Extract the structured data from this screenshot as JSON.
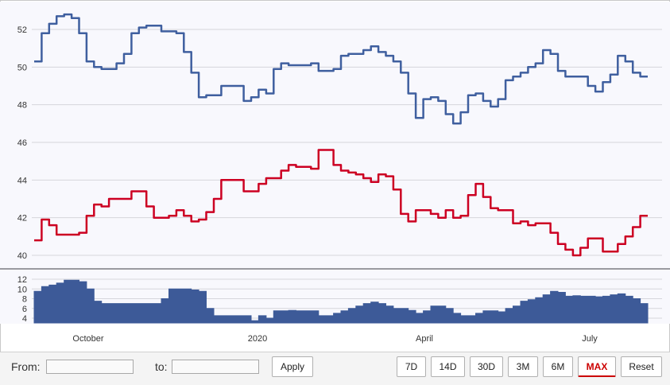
{
  "chart_data": [
    {
      "type": "line",
      "ylim": [
        40,
        53
      ],
      "y_ticks": [
        "40",
        "42",
        "44",
        "46",
        "48",
        "50",
        "52"
      ],
      "grid": true,
      "x_labels": [
        "October",
        "2020",
        "April",
        "July"
      ],
      "series": [
        {
          "color": "#3f5f9f",
          "values": [
            50.3,
            51.8,
            52.3,
            52.7,
            52.8,
            52.6,
            51.8,
            50.3,
            50.0,
            49.9,
            49.9,
            50.2,
            50.7,
            51.8,
            52.1,
            52.2,
            52.2,
            51.9,
            51.9,
            51.8,
            50.8,
            49.7,
            48.4,
            48.5,
            48.5,
            49.0,
            49.0,
            49.0,
            48.2,
            48.4,
            48.8,
            48.6,
            49.9,
            50.2,
            50.1,
            50.1,
            50.1,
            50.2,
            49.8,
            49.8,
            49.9,
            50.6,
            50.7,
            50.7,
            50.9,
            51.1,
            50.8,
            50.6,
            50.3,
            49.7,
            48.6,
            47.3,
            48.3,
            48.4,
            48.2,
            47.5,
            47.0,
            47.6,
            48.5,
            48.6,
            48.2,
            47.9,
            48.3,
            49.3,
            49.5,
            49.7,
            50.0,
            50.2,
            50.9,
            50.7,
            49.8,
            49.5,
            49.5,
            49.5,
            49.0,
            48.7,
            49.2,
            49.6,
            50.6,
            50.3,
            49.7,
            49.5
          ]
        },
        {
          "color": "#cc0022",
          "values": [
            40.8,
            41.9,
            41.6,
            41.1,
            41.1,
            41.1,
            41.2,
            42.1,
            42.7,
            42.6,
            43.0,
            43.0,
            43.0,
            43.4,
            43.4,
            42.6,
            42.0,
            42.0,
            42.1,
            42.4,
            42.1,
            41.8,
            41.9,
            42.3,
            43.0,
            44.0,
            44.0,
            44.0,
            43.4,
            43.4,
            43.8,
            44.1,
            44.1,
            44.5,
            44.8,
            44.7,
            44.7,
            44.6,
            45.6,
            45.6,
            44.8,
            44.5,
            44.4,
            44.3,
            44.1,
            43.9,
            44.3,
            44.2,
            43.5,
            42.2,
            41.8,
            42.4,
            42.4,
            42.2,
            42.0,
            42.4,
            42.0,
            42.1,
            43.2,
            43.8,
            43.1,
            42.5,
            42.4,
            42.4,
            41.7,
            41.8,
            41.6,
            41.7,
            41.7,
            41.2,
            40.6,
            40.3,
            40.0,
            40.4,
            40.9,
            40.9,
            40.2,
            40.2,
            40.6,
            41.0,
            41.5,
            42.1
          ]
        }
      ]
    },
    {
      "type": "area",
      "ylim": [
        2,
        13
      ],
      "y_ticks": [
        "4",
        "6",
        "8",
        "10",
        "12"
      ],
      "grid": true,
      "series": [
        {
          "color": "#3d5a98",
          "values": [
            9.5,
            10.5,
            10.8,
            11.2,
            11.8,
            11.8,
            11.5,
            10.0,
            7.5,
            7.0,
            7.0,
            7.0,
            7.0,
            7.0,
            7.0,
            7.0,
            7.0,
            8.0,
            10.0,
            10.0,
            10.0,
            9.8,
            9.5,
            6.0,
            4.5,
            4.5,
            4.5,
            4.5,
            4.5,
            3.5,
            4.5,
            4.0,
            5.5,
            5.5,
            5.6,
            5.5,
            5.5,
            5.5,
            4.5,
            4.5,
            5.0,
            5.5,
            6.0,
            6.5,
            7.0,
            7.3,
            7.0,
            6.5,
            6.0,
            6.0,
            5.6,
            5.0,
            5.5,
            6.5,
            6.5,
            6.0,
            5.0,
            4.5,
            4.5,
            5.0,
            5.5,
            5.5,
            5.3,
            6.0,
            6.5,
            7.5,
            7.8,
            8.2,
            8.8,
            9.5,
            9.3,
            8.5,
            8.6,
            8.5,
            8.5,
            8.4,
            8.5,
            8.8,
            9.0,
            8.5,
            8.0,
            7.0
          ]
        }
      ]
    }
  ],
  "range_selector": {
    "from_label": "From:",
    "to_label": "to:",
    "from_value": "",
    "to_value": "",
    "apply_label": "Apply",
    "buttons": [
      "7D",
      "14D",
      "30D",
      "3M",
      "6M",
      "MAX",
      "Reset"
    ],
    "active_button": "MAX",
    "active_color": "#cc0000"
  }
}
